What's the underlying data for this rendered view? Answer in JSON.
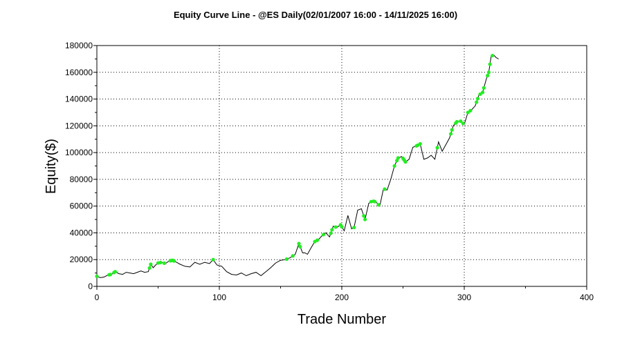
{
  "chart_data": {
    "type": "line",
    "title": "Equity Curve Line - @ES Daily(02/01/2007 16:00 - 14/11/2025 16:00)",
    "xlabel": "Trade Number",
    "ylabel": "Equity($)",
    "xlim": [
      0,
      400
    ],
    "ylim": [
      0,
      180000
    ],
    "x_ticks": [
      0,
      100,
      200,
      300,
      400
    ],
    "y_ticks": [
      0,
      20000,
      40000,
      60000,
      80000,
      100000,
      120000,
      140000,
      160000,
      180000
    ],
    "grid": true,
    "line_color": "#000000",
    "marker_color": "#22ee22",
    "series": [
      {
        "x": [
          0,
          3,
          6,
          9,
          12,
          15,
          18,
          21,
          24,
          27,
          30,
          33,
          36,
          39,
          42,
          44,
          46,
          48,
          50,
          53,
          56,
          59,
          62,
          65,
          68,
          72,
          76,
          80,
          84,
          88,
          92,
          95,
          98,
          102,
          106,
          110,
          114,
          118,
          122,
          126,
          130,
          134,
          138,
          142,
          146,
          150,
          154,
          158,
          162,
          165,
          168,
          170,
          172,
          175,
          178,
          181,
          184,
          187,
          190,
          193,
          196,
          199,
          202,
          205,
          208,
          210,
          213,
          216,
          219,
          222,
          225,
          228,
          231,
          234,
          237,
          240,
          243,
          246,
          249,
          252,
          255,
          258,
          261,
          264,
          267,
          270,
          273,
          276,
          279,
          282,
          285,
          288,
          291,
          294,
          297,
          300,
          303,
          306,
          309,
          312,
          315,
          318,
          320,
          322,
          324,
          326,
          328
        ],
        "y": [
          7500,
          6500,
          7000,
          8500,
          9000,
          11000,
          9500,
          9000,
          10500,
          10000,
          9500,
          10500,
          11500,
          10500,
          11000,
          16500,
          14000,
          16000,
          17500,
          18000,
          17000,
          19000,
          19500,
          18000,
          16500,
          15000,
          14500,
          18000,
          16500,
          18000,
          17000,
          20000,
          16000,
          15000,
          11000,
          9000,
          8500,
          10000,
          8000,
          9500,
          10500,
          8000,
          11000,
          14000,
          17500,
          19500,
          20000,
          21500,
          24000,
          32000,
          25000,
          25000,
          24000,
          29000,
          33500,
          35000,
          38000,
          40000,
          37000,
          45000,
          44000,
          46000,
          41500,
          53000,
          43000,
          44000,
          57000,
          58000,
          50000,
          62000,
          64000,
          63000,
          60000,
          73000,
          72000,
          80000,
          90000,
          96000,
          97000,
          93000,
          95000,
          104000,
          105000,
          106500,
          95000,
          96000,
          98000,
          95000,
          108000,
          101000,
          106000,
          111000,
          120000,
          123000,
          123500,
          121000,
          130000,
          132000,
          135000,
          143000,
          145000,
          155000,
          160000,
          172000,
          173000,
          171000,
          170000
        ]
      }
    ],
    "marker_x": [
      0,
      10,
      11,
      14,
      15,
      43,
      44,
      50,
      52,
      55,
      60,
      61,
      62,
      63,
      95,
      155,
      160,
      165,
      166,
      178,
      180,
      185,
      191,
      192,
      195,
      199,
      200,
      210,
      218,
      219,
      224,
      226,
      227,
      230,
      235,
      243,
      245,
      246,
      250,
      251,
      252,
      261,
      262,
      264,
      278,
      289,
      290,
      293,
      294,
      297,
      299,
      303,
      305,
      310,
      311,
      313,
      315,
      316,
      319,
      320,
      321,
      323
    ]
  }
}
